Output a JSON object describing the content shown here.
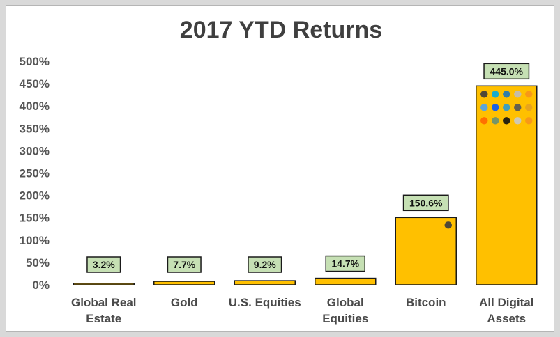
{
  "chart_data": {
    "type": "bar",
    "title": "2017 YTD Returns",
    "xlabel": "",
    "ylabel": "",
    "categories": [
      [
        "Global Real",
        "Estate"
      ],
      [
        "Gold"
      ],
      [
        "U.S. Equities"
      ],
      [
        "Global",
        "Equities"
      ],
      [
        "Bitcoin"
      ],
      [
        "All Digital",
        "Assets"
      ]
    ],
    "values": [
      3.2,
      7.7,
      9.2,
      14.7,
      150.6,
      445.0
    ],
    "data_labels": [
      "3.2%",
      "7.7%",
      "9.2%",
      "14.7%",
      "150.6%",
      "445.0%"
    ],
    "yticks": [
      "0%",
      "50%",
      "100%",
      "150%",
      "200%",
      "250%",
      "300%",
      "350%",
      "400%",
      "450%",
      "500%"
    ],
    "ylim": [
      0,
      500
    ],
    "grid": false,
    "colors": {
      "bar": "#ffc000",
      "bar_border": "#1a1a1a",
      "label_bg": "#c6e0b4",
      "label_border": "#1a1a1a"
    },
    "bar_icons": {
      "Bitcoin": [
        "bitcoin-icon"
      ],
      "All Digital Assets": [
        "ethereum-icon",
        "ripple-icon",
        "dash-icon",
        "litecoin-icon",
        "nem-icon",
        "steem-icon",
        "waves-icon",
        "stratis-icon",
        "golem-icon",
        "bytecoin-icon",
        "monero-icon",
        "ethereum-classic-icon",
        "zcash-icon",
        "augur-icon",
        "bitcoin-icon"
      ]
    }
  }
}
